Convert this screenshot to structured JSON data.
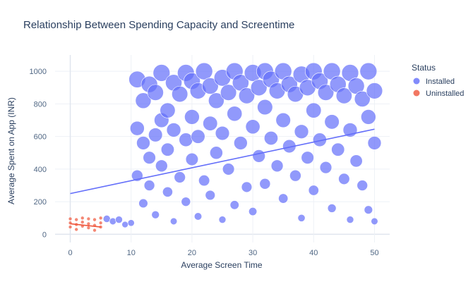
{
  "chart_data": {
    "type": "scatter",
    "title": "Relationship Between Spending Capacity and Screentime",
    "xlabel": "Average Screen Time",
    "ylabel": "Average Spent on App (INR)",
    "xlim": [
      -2.5,
      52.5
    ],
    "ylim": [
      -50,
      1100
    ],
    "xticks": [
      0,
      10,
      20,
      30,
      40,
      50
    ],
    "yticks": [
      0,
      200,
      400,
      600,
      800,
      1000
    ],
    "grid": true,
    "legend": {
      "title": "Status",
      "position": "top-right"
    },
    "series": [
      {
        "name": "Installed",
        "color": "#636efa",
        "marker_opacity": 0.7,
        "bubble_size": "proportional to Average Spent on App",
        "x_range": [
          0,
          50
        ],
        "y_range": [
          0,
          1000
        ],
        "trendline": {
          "x": [
            0,
            50
          ],
          "y": [
            250,
            645
          ]
        },
        "points": [
          [
            6,
            95
          ],
          [
            7,
            80
          ],
          [
            8,
            90
          ],
          [
            9,
            60
          ],
          [
            10,
            70
          ],
          [
            11,
            950
          ],
          [
            11,
            650
          ],
          [
            11,
            360
          ],
          [
            12,
            820
          ],
          [
            12,
            560
          ],
          [
            12,
            190
          ],
          [
            13,
            920
          ],
          [
            13,
            470
          ],
          [
            13,
            300
          ],
          [
            14,
            870
          ],
          [
            14,
            610
          ],
          [
            14,
            120
          ],
          [
            15,
            990
          ],
          [
            15,
            700
          ],
          [
            15,
            420
          ],
          [
            16,
            760
          ],
          [
            16,
            520
          ],
          [
            16,
            260
          ],
          [
            17,
            930
          ],
          [
            17,
            640
          ],
          [
            17,
            80
          ],
          [
            18,
            860
          ],
          [
            18,
            350
          ],
          [
            19,
            990
          ],
          [
            19,
            580
          ],
          [
            19,
            200
          ],
          [
            20,
            940
          ],
          [
            20,
            720
          ],
          [
            20,
            460
          ],
          [
            21,
            880
          ],
          [
            21,
            600
          ],
          [
            21,
            110
          ],
          [
            22,
            1000
          ],
          [
            22,
            330
          ],
          [
            23,
            910
          ],
          [
            23,
            680
          ],
          [
            23,
            240
          ],
          [
            24,
            820
          ],
          [
            24,
            500
          ],
          [
            25,
            960
          ],
          [
            25,
            620
          ],
          [
            25,
            90
          ],
          [
            26,
            870
          ],
          [
            26,
            400
          ],
          [
            27,
            1000
          ],
          [
            27,
            740
          ],
          [
            27,
            180
          ],
          [
            28,
            930
          ],
          [
            28,
            560
          ],
          [
            29,
            850
          ],
          [
            29,
            290
          ],
          [
            30,
            990
          ],
          [
            30,
            660
          ],
          [
            30,
            140
          ],
          [
            31,
            900
          ],
          [
            31,
            480
          ],
          [
            32,
            1000
          ],
          [
            32,
            780
          ],
          [
            32,
            310
          ],
          [
            33,
            950
          ],
          [
            33,
            590
          ],
          [
            34,
            880
          ],
          [
            34,
            420
          ],
          [
            35,
            1000
          ],
          [
            35,
            700
          ],
          [
            35,
            220
          ],
          [
            36,
            920
          ],
          [
            36,
            540
          ],
          [
            37,
            860
          ],
          [
            37,
            360
          ],
          [
            38,
            980
          ],
          [
            38,
            630
          ],
          [
            38,
            100
          ],
          [
            39,
            900
          ],
          [
            39,
            470
          ],
          [
            40,
            1000
          ],
          [
            40,
            760
          ],
          [
            40,
            270
          ],
          [
            41,
            940
          ],
          [
            41,
            580
          ],
          [
            42,
            870
          ],
          [
            42,
            410
          ],
          [
            43,
            1000
          ],
          [
            43,
            690
          ],
          [
            43,
            160
          ],
          [
            44,
            920
          ],
          [
            44,
            520
          ],
          [
            45,
            850
          ],
          [
            45,
            340
          ],
          [
            46,
            990
          ],
          [
            46,
            640
          ],
          [
            46,
            90
          ],
          [
            47,
            910
          ],
          [
            47,
            450
          ],
          [
            48,
            830
          ],
          [
            48,
            300
          ],
          [
            49,
            1000
          ],
          [
            49,
            720
          ],
          [
            49,
            150
          ],
          [
            50,
            880
          ],
          [
            50,
            560
          ],
          [
            50,
            80
          ]
        ]
      },
      {
        "name": "Uninstalled",
        "color": "#ef553b",
        "marker_opacity": 0.7,
        "x_range": [
          0,
          5
        ],
        "y_range": [
          0,
          100
        ],
        "trendline": {
          "x": [
            0,
            5
          ],
          "y": [
            65,
            45
          ]
        },
        "points": [
          [
            0,
            95
          ],
          [
            0,
            70
          ],
          [
            0,
            45
          ],
          [
            1,
            90
          ],
          [
            1,
            60
          ],
          [
            1,
            30
          ],
          [
            2,
            100
          ],
          [
            2,
            75
          ],
          [
            2,
            50
          ],
          [
            3,
            95
          ],
          [
            3,
            65
          ],
          [
            3,
            40
          ],
          [
            4,
            90
          ],
          [
            4,
            55
          ],
          [
            4,
            25
          ],
          [
            5,
            100
          ],
          [
            5,
            70
          ],
          [
            5,
            45
          ]
        ]
      }
    ]
  }
}
